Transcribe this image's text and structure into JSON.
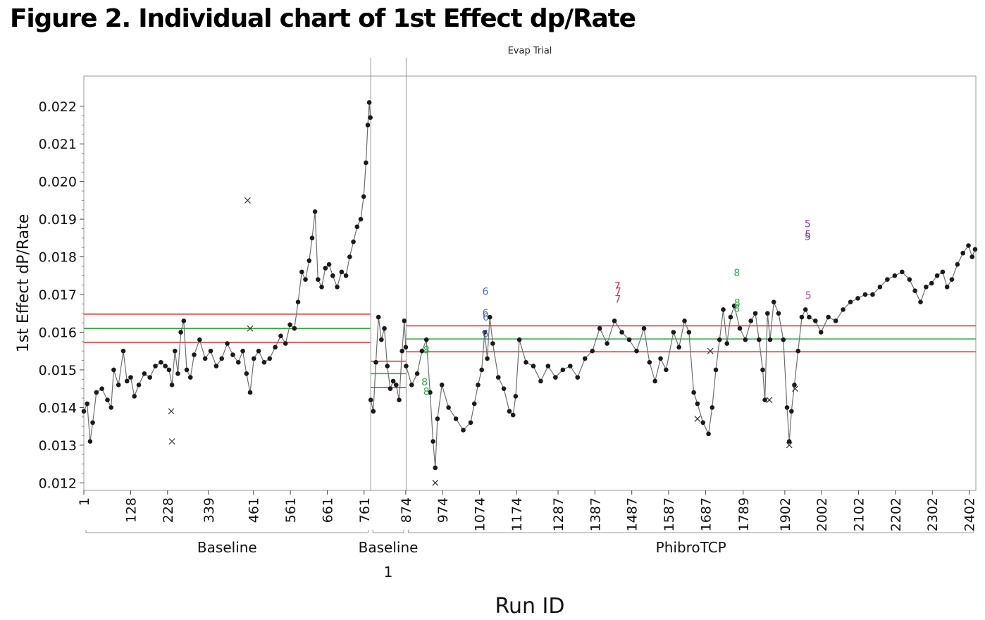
{
  "title": "Figure 2. Individual chart of 1st Effect dp/Rate",
  "chart_data": {
    "type": "line",
    "title": "Figure 2. Individual chart of 1st Effect dp/Rate",
    "group_label": "Evap Trial",
    "xlabel": "Run ID",
    "ylabel": "1st Effect dP/Rate",
    "ylim": [
      0.0118,
      0.0228
    ],
    "xlim": [
      1,
      2420
    ],
    "y_ticks": [
      "0.012",
      "0.013",
      "0.014",
      "0.015",
      "0.016",
      "0.017",
      "0.018",
      "0.019",
      "0.020",
      "0.021",
      "0.022"
    ],
    "x_ticks": [
      "1",
      "128",
      "228",
      "339",
      "461",
      "561",
      "661",
      "761",
      "874",
      "974",
      "1074",
      "1174",
      "1287",
      "1387",
      "1487",
      "1587",
      "1687",
      "1789",
      "1902",
      "2002",
      "2102",
      "2202",
      "2302",
      "2402"
    ],
    "x_tick_values": [
      1,
      128,
      228,
      339,
      461,
      561,
      661,
      761,
      874,
      974,
      1074,
      1174,
      1287,
      1387,
      1487,
      1587,
      1687,
      1789,
      1902,
      2002,
      2102,
      2202,
      2302,
      2402
    ],
    "phases": [
      {
        "label": "Baseline",
        "sublabel": "",
        "start": 1,
        "end": 778,
        "center": 0.0161,
        "ucl": 0.01648,
        "lcl": 0.01573,
        "series": [
          [
            1,
            0.0139
          ],
          [
            10,
            0.0141
          ],
          [
            18,
            0.0131
          ],
          [
            25,
            0.0136
          ],
          [
            35,
            0.0144
          ],
          [
            50,
            0.0145
          ],
          [
            65,
            0.0142
          ],
          [
            75,
            0.014
          ],
          [
            82,
            0.015
          ],
          [
            95,
            0.0146
          ],
          [
            108,
            0.0155
          ],
          [
            118,
            0.0147
          ],
          [
            128,
            0.0148
          ],
          [
            138,
            0.0143
          ],
          [
            150,
            0.0146
          ],
          [
            165,
            0.0149
          ],
          [
            180,
            0.0148
          ],
          [
            195,
            0.0151
          ],
          [
            210,
            0.0152
          ],
          [
            222,
            0.0151
          ],
          [
            232,
            0.015
          ],
          [
            240,
            0.0146
          ],
          [
            248,
            0.0155
          ],
          [
            256,
            0.0149
          ],
          [
            264,
            0.016
          ],
          [
            272,
            0.0163
          ],
          [
            280,
            0.015
          ],
          [
            290,
            0.0148
          ],
          [
            300,
            0.0154
          ],
          [
            315,
            0.0158
          ],
          [
            330,
            0.0153
          ],
          [
            345,
            0.0155
          ],
          [
            360,
            0.0151
          ],
          [
            375,
            0.0153
          ],
          [
            390,
            0.0157
          ],
          [
            405,
            0.0154
          ],
          [
            420,
            0.0152
          ],
          [
            432,
            0.0155
          ],
          [
            442,
            0.0149
          ],
          [
            452,
            0.0144
          ],
          [
            462,
            0.0153
          ],
          [
            475,
            0.0155
          ],
          [
            490,
            0.0152
          ],
          [
            505,
            0.0153
          ],
          [
            520,
            0.0156
          ],
          [
            535,
            0.0159
          ],
          [
            548,
            0.0157
          ],
          [
            560,
            0.0162
          ],
          [
            572,
            0.0161
          ],
          [
            582,
            0.0168
          ],
          [
            592,
            0.0176
          ],
          [
            602,
            0.0174
          ],
          [
            612,
            0.0179
          ],
          [
            620,
            0.0185
          ],
          [
            628,
            0.0192
          ],
          [
            636,
            0.0174
          ],
          [
            646,
            0.0172
          ],
          [
            656,
            0.0177
          ],
          [
            666,
            0.0178
          ],
          [
            676,
            0.0175
          ],
          [
            688,
            0.0172
          ],
          [
            700,
            0.0176
          ],
          [
            712,
            0.0175
          ],
          [
            722,
            0.018
          ],
          [
            732,
            0.0184
          ],
          [
            742,
            0.0188
          ],
          [
            752,
            0.019
          ],
          [
            760,
            0.0196
          ],
          [
            766,
            0.0205
          ],
          [
            771,
            0.0215
          ],
          [
            775,
            0.0221
          ],
          [
            778,
            0.0217
          ]
        ],
        "outliers": [
          [
            240,
            0.0131
          ],
          [
            238,
            0.0139
          ],
          [
            445,
            0.0195
          ],
          [
            452,
            0.0161
          ]
        ]
      },
      {
        "label": "Baseline",
        "sublabel": "1",
        "start": 779,
        "end": 874,
        "center": 0.0149,
        "ucl": 0.01523,
        "lcl": 0.01453,
        "series": [
          [
            779,
            0.0142
          ],
          [
            786,
            0.0139
          ],
          [
            793,
            0.0152
          ],
          [
            800,
            0.0164
          ],
          [
            808,
            0.0158
          ],
          [
            816,
            0.0161
          ],
          [
            824,
            0.0151
          ],
          [
            832,
            0.0145
          ],
          [
            840,
            0.0147
          ],
          [
            848,
            0.0146
          ],
          [
            856,
            0.0142
          ],
          [
            864,
            0.0155
          ],
          [
            870,
            0.0163
          ],
          [
            874,
            0.0156
          ]
        ],
        "outliers": []
      },
      {
        "label": "PhibroTCP",
        "sublabel": "",
        "start": 875,
        "end": 2420,
        "center": 0.01582,
        "ucl": 0.01617,
        "lcl": 0.01548,
        "series": [
          [
            875,
            0.0151
          ],
          [
            890,
            0.0146
          ],
          [
            905,
            0.0149
          ],
          [
            918,
            0.0155
          ],
          [
            930,
            0.0158
          ],
          [
            940,
            0.0144
          ],
          [
            948,
            0.0131
          ],
          [
            954,
            0.0124
          ],
          [
            960,
            0.0137
          ],
          [
            972,
            0.0146
          ],
          [
            990,
            0.014
          ],
          [
            1010,
            0.0137
          ],
          [
            1030,
            0.0134
          ],
          [
            1050,
            0.0136
          ],
          [
            1060,
            0.0141
          ],
          [
            1070,
            0.0146
          ],
          [
            1080,
            0.015
          ],
          [
            1088,
            0.016
          ],
          [
            1095,
            0.0153
          ],
          [
            1102,
            0.0164
          ],
          [
            1110,
            0.0157
          ],
          [
            1125,
            0.0148
          ],
          [
            1140,
            0.0145
          ],
          [
            1155,
            0.0139
          ],
          [
            1165,
            0.0138
          ],
          [
            1172,
            0.0143
          ],
          [
            1182,
            0.0158
          ],
          [
            1200,
            0.0152
          ],
          [
            1220,
            0.0151
          ],
          [
            1240,
            0.0147
          ],
          [
            1260,
            0.0151
          ],
          [
            1280,
            0.0148
          ],
          [
            1300,
            0.015
          ],
          [
            1320,
            0.0151
          ],
          [
            1340,
            0.0148
          ],
          [
            1360,
            0.0153
          ],
          [
            1380,
            0.0155
          ],
          [
            1400,
            0.0161
          ],
          [
            1420,
            0.0157
          ],
          [
            1440,
            0.0163
          ],
          [
            1460,
            0.016
          ],
          [
            1480,
            0.0158
          ],
          [
            1500,
            0.0155
          ],
          [
            1520,
            0.0161
          ],
          [
            1535,
            0.0152
          ],
          [
            1550,
            0.0147
          ],
          [
            1565,
            0.0153
          ],
          [
            1580,
            0.015
          ],
          [
            1600,
            0.016
          ],
          [
            1615,
            0.0156
          ],
          [
            1630,
            0.0163
          ],
          [
            1642,
            0.016
          ],
          [
            1655,
            0.0144
          ],
          [
            1665,
            0.0141
          ],
          [
            1680,
            0.0136
          ],
          [
            1695,
            0.0133
          ],
          [
            1705,
            0.014
          ],
          [
            1715,
            0.015
          ],
          [
            1725,
            0.0158
          ],
          [
            1735,
            0.0166
          ],
          [
            1745,
            0.0157
          ],
          [
            1755,
            0.0164
          ],
          [
            1765,
            0.0167
          ],
          [
            1780,
            0.0161
          ],
          [
            1795,
            0.0158
          ],
          [
            1810,
            0.0163
          ],
          [
            1822,
            0.0165
          ],
          [
            1832,
            0.0158
          ],
          [
            1842,
            0.015
          ],
          [
            1848,
            0.0142
          ],
          [
            1855,
            0.0165
          ],
          [
            1862,
            0.0158
          ],
          [
            1872,
            0.0168
          ],
          [
            1885,
            0.0165
          ],
          [
            1898,
            0.0158
          ],
          [
            1908,
            0.014
          ],
          [
            1914,
            0.0131
          ],
          [
            1920,
            0.0139
          ],
          [
            1928,
            0.0146
          ],
          [
            1938,
            0.0155
          ],
          [
            1948,
            0.0164
          ],
          [
            1958,
            0.0166
          ],
          [
            1968,
            0.0164
          ],
          [
            1985,
            0.0163
          ],
          [
            2000,
            0.016
          ],
          [
            2020,
            0.0164
          ],
          [
            2040,
            0.0163
          ],
          [
            2060,
            0.0166
          ],
          [
            2080,
            0.0168
          ],
          [
            2100,
            0.0169
          ],
          [
            2120,
            0.017
          ],
          [
            2140,
            0.017
          ],
          [
            2160,
            0.0172
          ],
          [
            2180,
            0.0174
          ],
          [
            2200,
            0.0175
          ],
          [
            2220,
            0.0176
          ],
          [
            2240,
            0.0174
          ],
          [
            2255,
            0.0171
          ],
          [
            2270,
            0.0168
          ],
          [
            2285,
            0.0172
          ],
          [
            2300,
            0.0173
          ],
          [
            2315,
            0.0175
          ],
          [
            2330,
            0.0176
          ],
          [
            2342,
            0.0172
          ],
          [
            2355,
            0.0174
          ],
          [
            2370,
            0.0178
          ],
          [
            2385,
            0.0181
          ],
          [
            2400,
            0.0183
          ],
          [
            2410,
            0.018
          ],
          [
            2418,
            0.0182
          ]
        ],
        "outliers": [
          [
            954,
            0.012
          ],
          [
            1665,
            0.0137
          ],
          [
            1700,
            0.0155
          ],
          [
            1860,
            0.0142
          ],
          [
            1914,
            0.013
          ],
          [
            1930,
            0.0145
          ]
        ]
      }
    ],
    "test_markers": [
      {
        "label": "6",
        "color": "#4a6fc4",
        "x": 1090,
        "y": 0.0171
      },
      {
        "label": "6",
        "color": "#4a6fc4",
        "x": 1090,
        "y": 0.01653
      },
      {
        "label": "6",
        "color": "#4a6fc4",
        "x": 1091,
        "y": 0.01642
      },
      {
        "label": "6",
        "color": "#4a6fc4",
        "x": 1090,
        "y": 0.01598
      },
      {
        "label": "7",
        "color": "#d62f5c",
        "x": 1448,
        "y": 0.01725
      },
      {
        "label": "7",
        "color": "#d62f5c",
        "x": 1450,
        "y": 0.0171
      },
      {
        "label": "7",
        "color": "#d62f5c",
        "x": 1449,
        "y": 0.0169
      },
      {
        "label": "8",
        "color": "#2fa84f",
        "x": 1772,
        "y": 0.0176
      },
      {
        "label": "8",
        "color": "#2fa84f",
        "x": 1773,
        "y": 0.0168
      },
      {
        "label": "8",
        "color": "#2fa84f",
        "x": 1772,
        "y": 0.01665
      },
      {
        "label": "5",
        "color": "#8a3fb0",
        "x": 1964,
        "y": 0.0189
      },
      {
        "label": "5",
        "color": "#8a3fb0",
        "x": 1965,
        "y": 0.01862
      },
      {
        "label": "5",
        "color": "#8a3fb0",
        "x": 1964,
        "y": 0.01855
      },
      {
        "label": "5",
        "color": "#c24aa0",
        "x": 1966,
        "y": 0.017
      },
      {
        "label": "8",
        "color": "#2fa84f",
        "x": 930,
        "y": 0.01555
      },
      {
        "label": "8",
        "color": "#2fa84f",
        "x": 925,
        "y": 0.0147
      },
      {
        "label": "8",
        "color": "#2fa84f",
        "x": 930,
        "y": 0.01445
      }
    ],
    "colors": {
      "center": "#2eaa3a",
      "limits": "#e0383e",
      "series": "#6e6e6e",
      "points": "#1a1a1a",
      "frame": "#9a9a9a"
    }
  }
}
